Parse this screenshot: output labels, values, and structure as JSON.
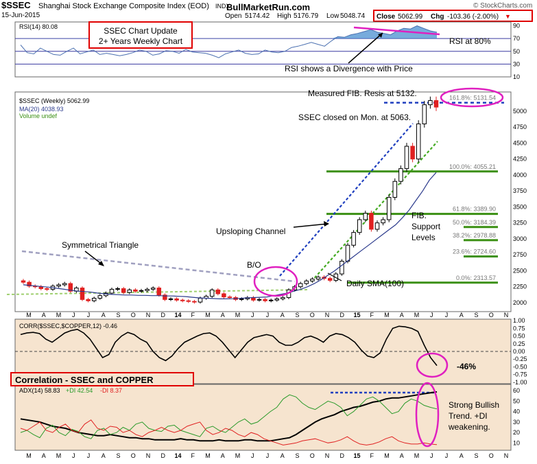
{
  "header": {
    "symbol": "$SSEC",
    "name": "Shanghai Stock Exchange Composite Index (EOD)",
    "exchange": "INDX",
    "watermark_site": "© StockCharts.com",
    "date": "15-Jun-2015",
    "brand": "BullMarketRun.com",
    "open_label": "Open",
    "open": "5174.42",
    "high_label": "High",
    "high": "5176.79",
    "low_label": "Low",
    "low": "5048.74",
    "close_label": "Close",
    "close": "5062.99",
    "chg_label": "Chg",
    "chg": "-103.36 (-2.00%)",
    "chg_arrow": "▼"
  },
  "annotations": {
    "title_line1": "SSEC Chart Update",
    "title_line2": "2+ Years Weekly Chart",
    "rsi80": "RSI at 80%",
    "rsi_divergence": "RSI shows a Divergence with Price",
    "measured_fib": "Measured FIB. Resis at 5132.",
    "ssec_closed": "SSEC closed on Mon. at 5063.",
    "upsloping": "Upsloping Channel",
    "sym_triangle": "Symmetrical Triangle",
    "bo": "B/O",
    "fib_support_1": "FIB.",
    "fib_support_2": "Support",
    "fib_support_3": "Levels",
    "daily_sma": "Daily SMA(100)",
    "correlation_title": "Correlation - SSEC and COPPER",
    "corr_value": "-46%",
    "adx_note_1": "Strong Bullish",
    "adx_note_2": "Trend. +DI",
    "adx_note_3": "weakening."
  },
  "colors": {
    "rsi_fill": "#4a8fd0",
    "grid_bg": "#ffffff",
    "lower_bg": "#f6e4cf",
    "up_candle": "#000000",
    "down_candle": "#e02020",
    "fib_green": "#3a8f12",
    "sma_line": "#2b3a8c",
    "channel_blue": "#1f3fbf",
    "channel_green": "#44aa22",
    "triangle_gray": "#a0a0c0",
    "highlight_magenta": "#e020c0",
    "title_box_red": "#e00000",
    "plus_di": "#2a9a2a",
    "minus_di": "#e02020"
  },
  "chart_data": [
    {
      "type": "line",
      "name": "RSI panel",
      "legend": "RSI(14) 80.08",
      "yticks": [
        10,
        30,
        50,
        70,
        90
      ],
      "levels": [
        30,
        50,
        70
      ],
      "ylim": [
        10,
        96
      ],
      "values": [
        60,
        48,
        46,
        55,
        50,
        45,
        44,
        50,
        55,
        46,
        49,
        52,
        45,
        47,
        45,
        43,
        45,
        48,
        52,
        50,
        44,
        46,
        51,
        50,
        47,
        53,
        49,
        48,
        47,
        44,
        40,
        46,
        49,
        52,
        47,
        45,
        46,
        52,
        49,
        48,
        50,
        56,
        58,
        61,
        64,
        61,
        58,
        66,
        73,
        72,
        76,
        78,
        81,
        84,
        80,
        78,
        76,
        82,
        86,
        85,
        90,
        86,
        82,
        80
      ],
      "divergence_note": "RSI shows a Divergence with Price"
    },
    {
      "type": "candlestick",
      "name": "Price panel",
      "legend": [
        "$SSEC (Weekly) 5062.99",
        "MA(20) 4038.93",
        "Volume undef"
      ],
      "yticks": [
        2000,
        2250,
        2500,
        2750,
        3000,
        3250,
        3500,
        3750,
        4000,
        4250,
        4500,
        4750,
        5000
      ],
      "ylim": [
        1860,
        5300
      ],
      "x_labels": [
        "M",
        "A",
        "M",
        "J",
        "J",
        "A",
        "S",
        "O",
        "N",
        "D",
        "14",
        "F",
        "M",
        "A",
        "M",
        "J",
        "J",
        "A",
        "S",
        "O",
        "N",
        "D",
        "15",
        "F",
        "M",
        "A",
        "M",
        "J",
        "J",
        "A",
        "S",
        "O",
        "N"
      ],
      "close": [
        2320,
        2260,
        2250,
        2220,
        2210,
        2260,
        2280,
        2300,
        2180,
        2230,
        2050,
        2030,
        2070,
        2110,
        2150,
        2210,
        2220,
        2160,
        2200,
        2180,
        2190,
        2210,
        2230,
        2120,
        2050,
        2060,
        2040,
        2030,
        2020,
        2010,
        2070,
        2100,
        2200,
        2140,
        2090,
        2080,
        2050,
        2060,
        2080,
        2040,
        2050,
        2030,
        2040,
        2060,
        2080,
        2200,
        2250,
        2300,
        2340,
        2370,
        2400,
        2380,
        2350,
        2450,
        2650,
        2900,
        3100,
        3300,
        3400,
        3150,
        3250,
        3300,
        3650,
        3900,
        4100,
        4450,
        4250,
        4800,
        5100,
        5166,
        5062.99
      ],
      "ma20": [
        2280,
        2270,
        2260,
        2250,
        2240,
        2225,
        2210,
        2195,
        2180,
        2175,
        2165,
        2150,
        2140,
        2130,
        2125,
        2120,
        2120,
        2115,
        2115,
        2110,
        2110,
        2105,
        2105,
        2100,
        2095,
        2085,
        2075,
        2070,
        2065,
        2060,
        2060,
        2062,
        2068,
        2075,
        2080,
        2085,
        2090,
        2110,
        2130,
        2150,
        2180,
        2210,
        2250,
        2300,
        2360,
        2430,
        2500,
        2580,
        2660,
        2740,
        2820,
        2900,
        2980,
        3060,
        3140,
        3220,
        3330,
        3450,
        3600,
        3750,
        3920,
        4038.93
      ],
      "fib_levels": [
        {
          "label": "161.8%: 5131.54",
          "value": 5131.54
        },
        {
          "label": "100.0%: 4055.21",
          "value": 4055.21
        },
        {
          "label": "61.8%: 3389.90",
          "value": 3389.9
        },
        {
          "label": "50.0%: 3184.39",
          "value": 3184.39
        },
        {
          "label": "38.2%: 2978.88",
          "value": 2978.88
        },
        {
          "label": "23.6%: 2724.60",
          "value": 2724.6
        },
        {
          "label": "0.0%: 2313.57",
          "value": 2313.57
        }
      ]
    },
    {
      "type": "line",
      "name": "Correlation panel",
      "legend": "CORR($SSEC,$COPPER,12) -0.46",
      "yticks": [
        1.0,
        0.75,
        0.5,
        0.25,
        0.0,
        -0.25,
        -0.5,
        -0.75,
        -1.0
      ],
      "ylim": [
        -1.05,
        1.05
      ],
      "values": [
        0.55,
        0.6,
        0.62,
        0.58,
        0.4,
        0.3,
        0.45,
        0.6,
        0.68,
        0.72,
        0.6,
        0.4,
        0.1,
        -0.2,
        -0.1,
        0.3,
        0.5,
        0.62,
        0.55,
        0.4,
        0.3,
        0.0,
        -0.2,
        -0.3,
        -0.15,
        0.1,
        0.3,
        0.4,
        0.5,
        0.58,
        0.6,
        0.5,
        0.3,
        0.05,
        -0.2,
        0.05,
        0.3,
        0.45,
        0.5,
        0.55,
        0.5,
        0.3,
        0.2,
        0.2,
        0.3,
        0.45,
        0.5,
        0.42,
        0.3,
        0.5,
        0.58,
        0.55,
        0.45,
        0.3,
        0.05,
        -0.15,
        -0.2,
        -0.05,
        0.4,
        0.75,
        0.82,
        0.8,
        0.75,
        0.65,
        0.2,
        -0.2,
        -0.46
      ]
    },
    {
      "type": "line",
      "name": "ADX panel",
      "legend_adx": "ADX(14) 58.83",
      "legend_plus": "+DI 42.54",
      "legend_minus": "-DI 8.37",
      "yticks": [
        10,
        20,
        30,
        40,
        50,
        60
      ],
      "ylim": [
        3,
        66
      ],
      "series": [
        {
          "name": "ADX(14)",
          "values": [
            33,
            32,
            31,
            30,
            28,
            26,
            25,
            24,
            22,
            20,
            19,
            18,
            17,
            17,
            18,
            17,
            16,
            15,
            15,
            14,
            14,
            13,
            13,
            13,
            13,
            14,
            13,
            13,
            12,
            12,
            12,
            13,
            12,
            12,
            12,
            13,
            13,
            12,
            12,
            12,
            13,
            14,
            15,
            18,
            22,
            26,
            30,
            33,
            35,
            37,
            40,
            42,
            44,
            45,
            47,
            49,
            50,
            52,
            53,
            53,
            54,
            55,
            56,
            57,
            58,
            58.83
          ]
        },
        {
          "name": "+DI",
          "values": [
            20,
            22,
            18,
            15,
            24,
            27,
            20,
            17,
            23,
            21,
            16,
            14,
            22,
            24,
            18,
            20,
            25,
            22,
            28,
            30,
            24,
            22,
            21,
            26,
            27,
            22,
            20,
            18,
            16,
            24,
            26,
            22,
            20,
            25,
            30,
            33,
            28,
            30,
            35,
            40,
            44,
            52,
            56,
            54,
            48,
            44,
            42,
            46,
            50,
            48,
            44,
            36,
            40,
            46,
            52,
            54,
            50,
            44,
            38,
            40,
            48,
            52,
            50,
            46,
            44,
            42.54
          ]
        },
        {
          "name": "-DI",
          "values": [
            24,
            22,
            26,
            30,
            22,
            20,
            25,
            28,
            22,
            20,
            28,
            32,
            24,
            22,
            26,
            25,
            20,
            22,
            18,
            16,
            20,
            22,
            25,
            22,
            20,
            22,
            26,
            28,
            30,
            22,
            18,
            20,
            24,
            22,
            18,
            16,
            20,
            18,
            14,
            12,
            10,
            8,
            9,
            10,
            12,
            13,
            14,
            12,
            10,
            11,
            13,
            16,
            12,
            9,
            8,
            9,
            11,
            14,
            16,
            12,
            10,
            9,
            9,
            10,
            9,
            8.37
          ]
        }
      ]
    }
  ]
}
